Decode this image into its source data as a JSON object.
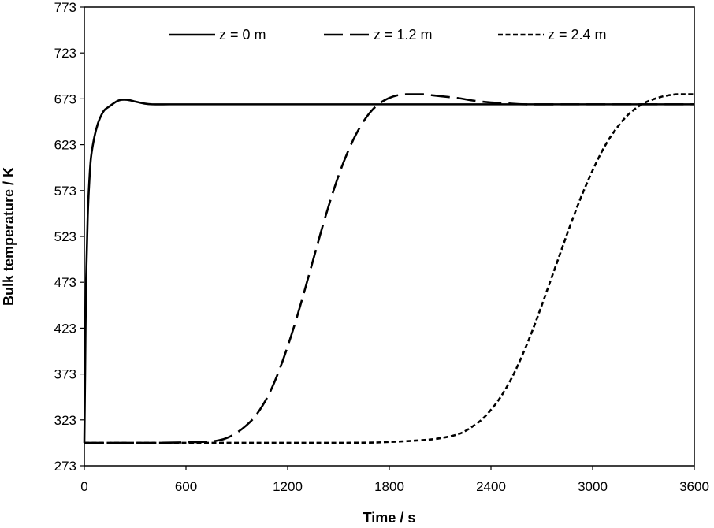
{
  "chart_data": {
    "type": "line",
    "title": "",
    "xlabel": "Time / s",
    "ylabel": "Bulk temperature / K",
    "xlim": [
      0,
      3600
    ],
    "ylim": [
      273,
      773
    ],
    "x_ticks": [
      0,
      600,
      1200,
      1800,
      2400,
      3000,
      3600
    ],
    "y_ticks": [
      273,
      323,
      373,
      423,
      473,
      523,
      573,
      623,
      673,
      723,
      773
    ],
    "grid": false,
    "legend_position": "top",
    "series": [
      {
        "name": "z = 0 m",
        "line_style": "solid",
        "color": "#000000",
        "x": [
          0,
          5,
          10,
          20,
          30,
          40,
          60,
          80,
          100,
          120,
          150,
          180,
          200,
          220,
          250,
          280,
          300,
          350,
          400,
          500,
          600,
          1000,
          1500,
          2000,
          2500,
          3000,
          3600
        ],
        "y": [
          298,
          380,
          470,
          545,
          585,
          610,
          632,
          646,
          655,
          661,
          665,
          669,
          671,
          672,
          672,
          671,
          670,
          668,
          667,
          667,
          667,
          667,
          667,
          667,
          667,
          667,
          667
        ]
      },
      {
        "name": "z = 1.2 m",
        "line_style": "long-dash",
        "color": "#000000",
        "x": [
          0,
          400,
          700,
          800,
          850,
          900,
          950,
          1000,
          1050,
          1100,
          1150,
          1200,
          1250,
          1300,
          1350,
          1400,
          1450,
          1500,
          1550,
          1600,
          1650,
          1700,
          1750,
          1800,
          1850,
          1900,
          1950,
          2000,
          2050,
          2100,
          2200,
          2300,
          2400,
          2500,
          2600,
          2800,
          3000,
          3600
        ],
        "y": [
          298,
          298,
          299,
          301,
          304,
          309,
          316,
          325,
          338,
          355,
          377,
          403,
          432,
          464,
          497,
          530,
          561,
          589,
          613,
          633,
          649,
          661,
          669,
          674,
          677,
          678,
          678,
          678,
          677,
          676,
          674,
          671,
          669,
          668,
          667,
          667,
          667,
          667
        ]
      },
      {
        "name": "z = 2.4 m",
        "line_style": "short-dash",
        "color": "#000000",
        "x": [
          0,
          1500,
          1800,
          2000,
          2100,
          2200,
          2250,
          2300,
          2350,
          2400,
          2450,
          2500,
          2550,
          2600,
          2650,
          2700,
          2750,
          2800,
          2850,
          2900,
          2950,
          3000,
          3050,
          3100,
          3150,
          3200,
          3250,
          3300,
          3350,
          3400,
          3450,
          3500,
          3550,
          3600
        ],
        "y": [
          298,
          298,
          299,
          301,
          303,
          307,
          311,
          317,
          324,
          334,
          346,
          361,
          379,
          400,
          423,
          448,
          474,
          500,
          526,
          551,
          574,
          595,
          614,
          630,
          643,
          654,
          662,
          668,
          672,
          675,
          677,
          678,
          678,
          678
        ]
      }
    ]
  }
}
